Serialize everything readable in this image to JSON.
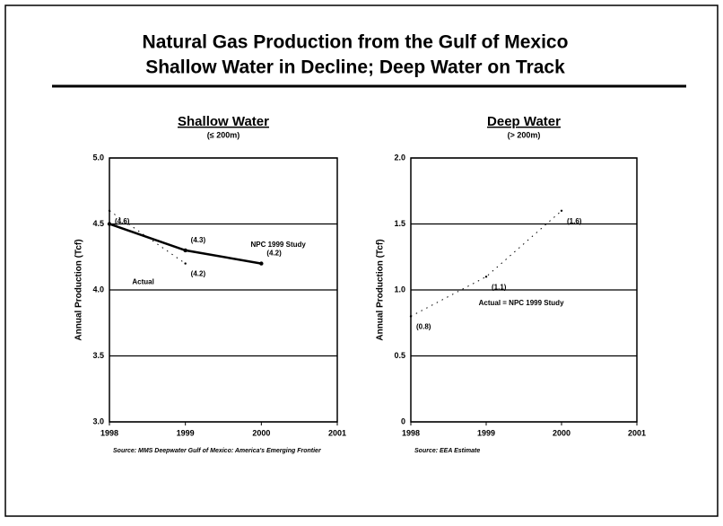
{
  "slide": {
    "title_lines": [
      "Natural Gas Production from the Gulf of Mexico",
      "Shallow Water in Decline; Deep Water on Track"
    ]
  },
  "chart_data": [
    {
      "type": "line",
      "title": "Shallow Water",
      "subtitle": "(≤ 200m)",
      "y_label": "Annual Production (Tcf)",
      "x": [
        1998,
        1999,
        2000
      ],
      "xlim": [
        1998,
        2001
      ],
      "xticks": [
        1998,
        1999,
        2000,
        2001
      ],
      "ylim": [
        3,
        5
      ],
      "yticks": [
        {
          "value": 3,
          "label": "3.0"
        },
        {
          "value": 3.5,
          "label": "3.5"
        },
        {
          "value": 4,
          "label": "4.0"
        },
        {
          "value": 4.5,
          "label": "4.5"
        },
        {
          "value": 5,
          "label": "5.0"
        }
      ],
      "grid": true,
      "series": [
        {
          "name": "NPC 1999 Study",
          "color": "#000000",
          "line_style": "solid",
          "values": [
            4.5,
            4.3,
            4.2
          ],
          "value_labels": [
            null,
            "(4.3)",
            "(4.2)"
          ]
        },
        {
          "name": "Actual",
          "color": "#000000",
          "line_style": "dotted",
          "values": [
            4.6,
            4.2,
            null
          ],
          "value_labels": [
            "(4.6)",
            "(4.2)",
            null
          ]
        }
      ],
      "source": "Source: MMS Deepwater Gulf of Mexico: America's Emerging Frontier"
    },
    {
      "type": "line",
      "title": "Deep Water",
      "subtitle": "(> 200m)",
      "y_label": "Annual Production (Tcf)",
      "x": [
        1998,
        1999,
        2000
      ],
      "xlim": [
        1998,
        2001
      ],
      "xticks": [
        1998,
        1999,
        2000,
        2001
      ],
      "ylim": [
        0,
        2
      ],
      "yticks": [
        0,
        {
          "value": 0.5,
          "label": "0.5"
        },
        {
          "value": 1,
          "label": "1.0"
        },
        {
          "value": 1.5,
          "label": "1.5"
        },
        {
          "value": 2,
          "label": "2.0"
        }
      ],
      "grid": true,
      "series": [
        {
          "name": "Actual = NPC 1999 Study",
          "color": "#000000",
          "line_style": "dotted",
          "values": [
            0.8,
            1.1,
            1.6
          ],
          "value_labels": [
            "(0.8)",
            "(1.1)",
            "(1.6)"
          ]
        }
      ],
      "source": "Source: EEA Estimate"
    }
  ]
}
